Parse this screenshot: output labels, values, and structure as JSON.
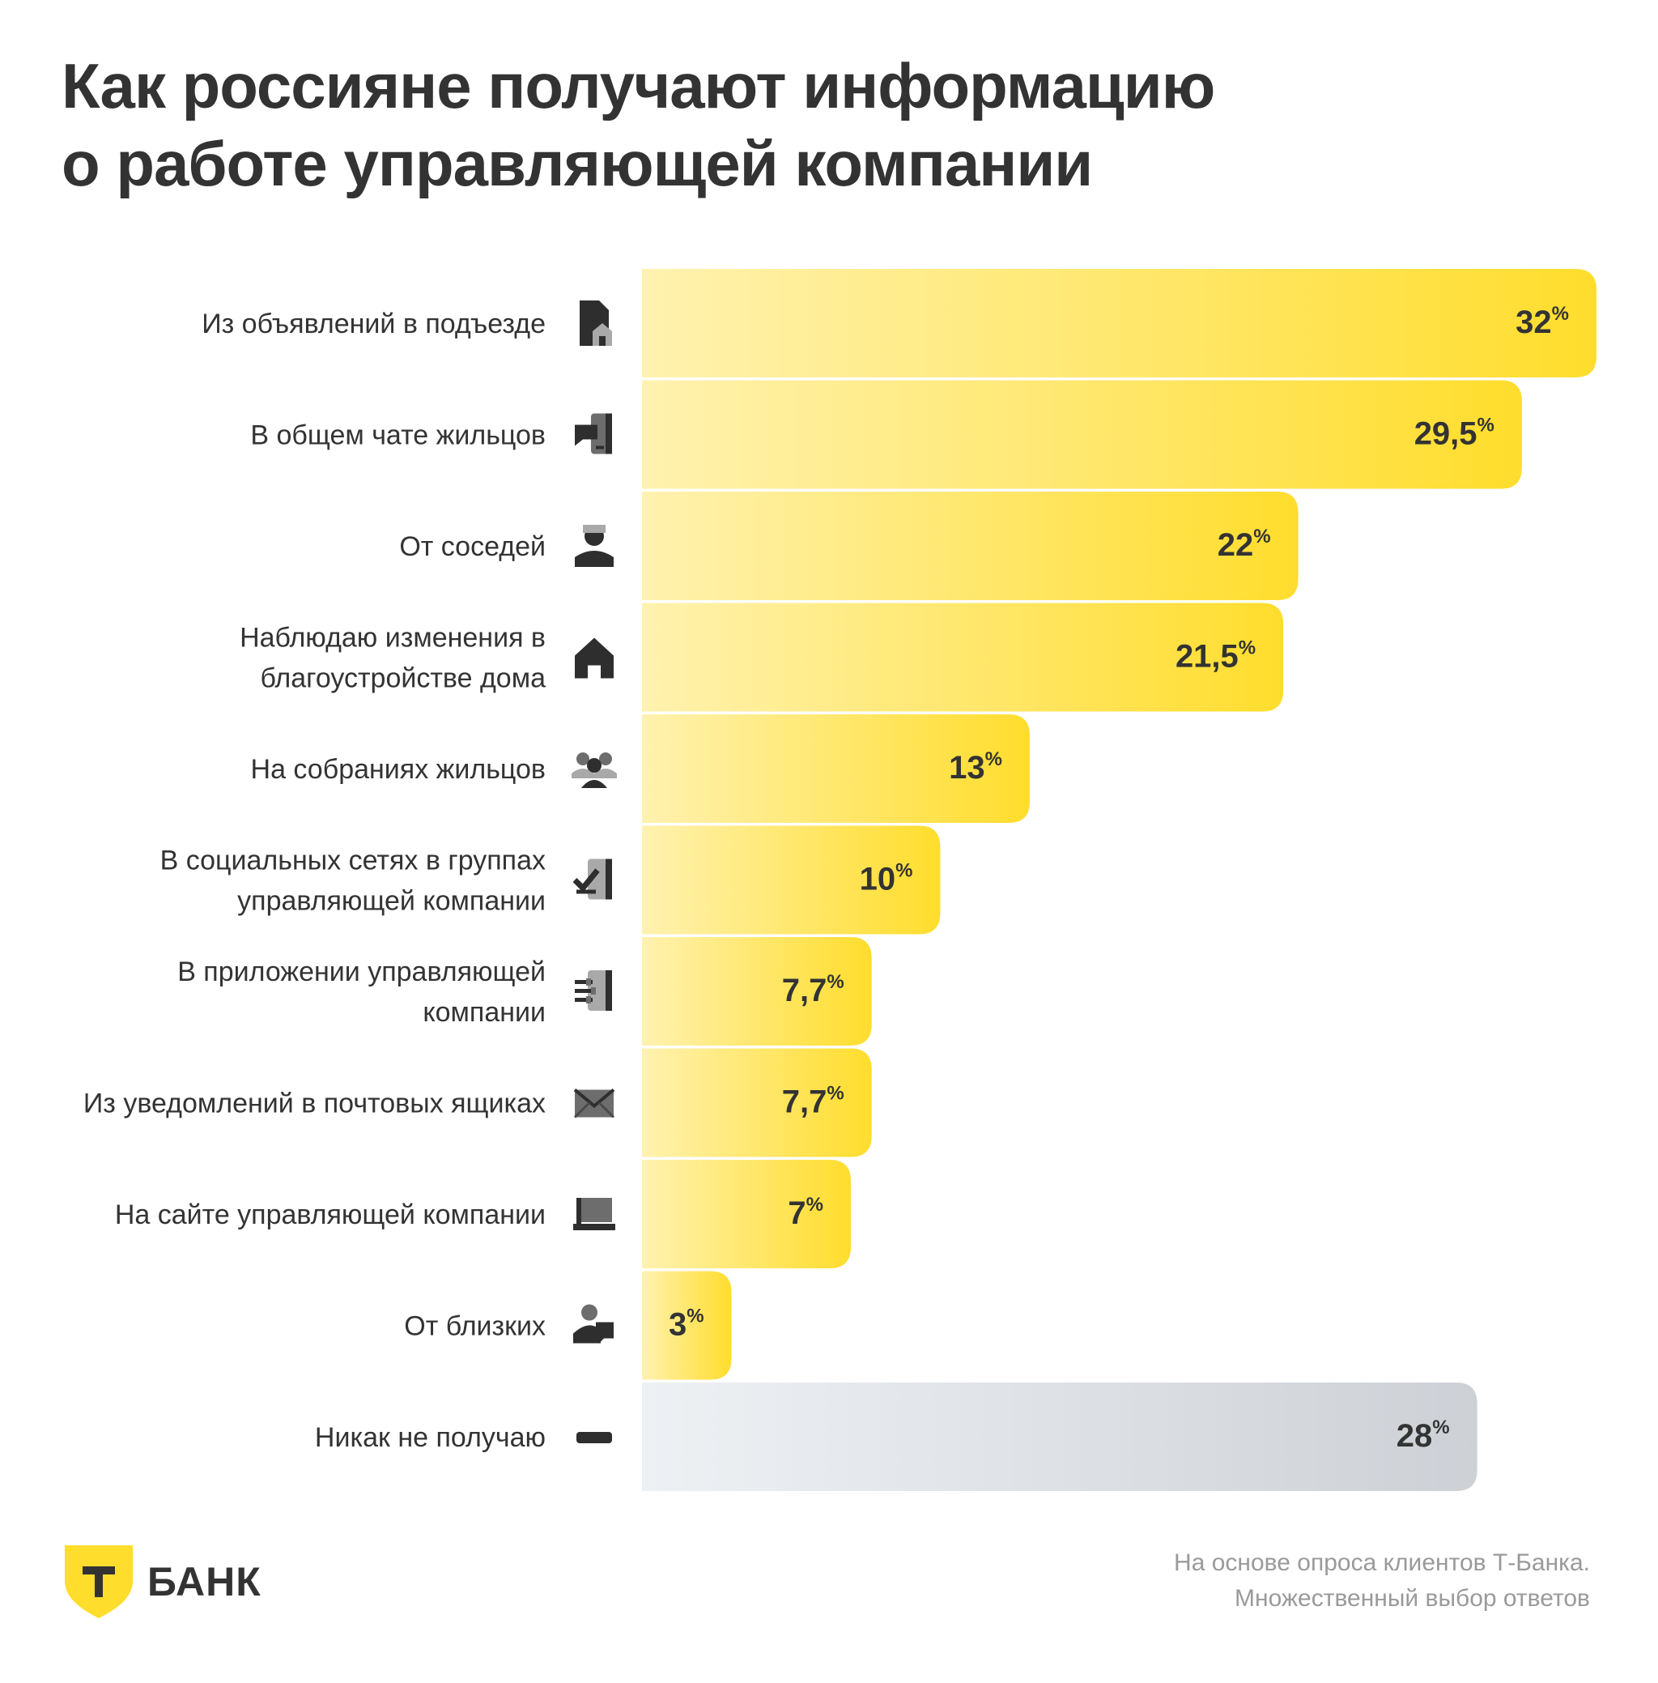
{
  "title": {
    "line1": "Как россияне получают информацию",
    "line2": "о работе управляющей компании"
  },
  "chart_data": {
    "type": "bar",
    "orientation": "horizontal",
    "title": "Как россияне получают информацию о работе управляющей компании",
    "unit": "%",
    "categories": [
      [
        "Из объявлений в подъезде"
      ],
      [
        "В общем чате жильцов"
      ],
      [
        "От соседей"
      ],
      [
        "Наблюдаю изменения в",
        "благоустройстве дома"
      ],
      [
        "На собраниях жильцов"
      ],
      [
        "В социальных сетях в группах",
        "управляющей компании"
      ],
      [
        "В приложении управляющей",
        "компании"
      ],
      [
        "Из уведомлений в почтовых ящиках"
      ],
      [
        "На сайте управляющей компании"
      ],
      [
        "От близких"
      ],
      [
        "Никак не получаю"
      ]
    ],
    "values": [
      32,
      29.5,
      22,
      21.5,
      13,
      10,
      7.7,
      7.7,
      7,
      3,
      28
    ],
    "value_labels": [
      "32",
      "29,5",
      "22",
      "21,5",
      "13",
      "10",
      "7,7",
      "7,7",
      "7",
      "3",
      "28"
    ],
    "icons": [
      "entrance-notice-icon",
      "chat-phone-icon",
      "neighbors-icon",
      "house-icon",
      "meeting-icon",
      "social-network-icon",
      "app-icon",
      "mailbox-envelope-icon",
      "laptop-icon",
      "family-icon",
      "none-dash-icon"
    ],
    "bar_colors": [
      "yellow",
      "yellow",
      "yellow",
      "yellow",
      "yellow",
      "yellow",
      "yellow",
      "yellow",
      "yellow",
      "yellow",
      "gray"
    ],
    "xlim": [
      0,
      32
    ],
    "grid": false,
    "legend": "none"
  },
  "colors": {
    "bar_yellow_start": "#FFF2B0",
    "bar_yellow_end": "#FFDD2D",
    "bar_gray_start": "#EEF1F4",
    "bar_gray_end": "#CDD1D6",
    "text": "#333333",
    "footnote": "#9A9A9A",
    "brand": "#FFDD2D"
  },
  "logo": {
    "mark": "Т",
    "text": "БАНК"
  },
  "footnote": {
    "line1": "На основе опроса клиентов Т-Банка.",
    "line2": "Множественный выбор ответов"
  }
}
